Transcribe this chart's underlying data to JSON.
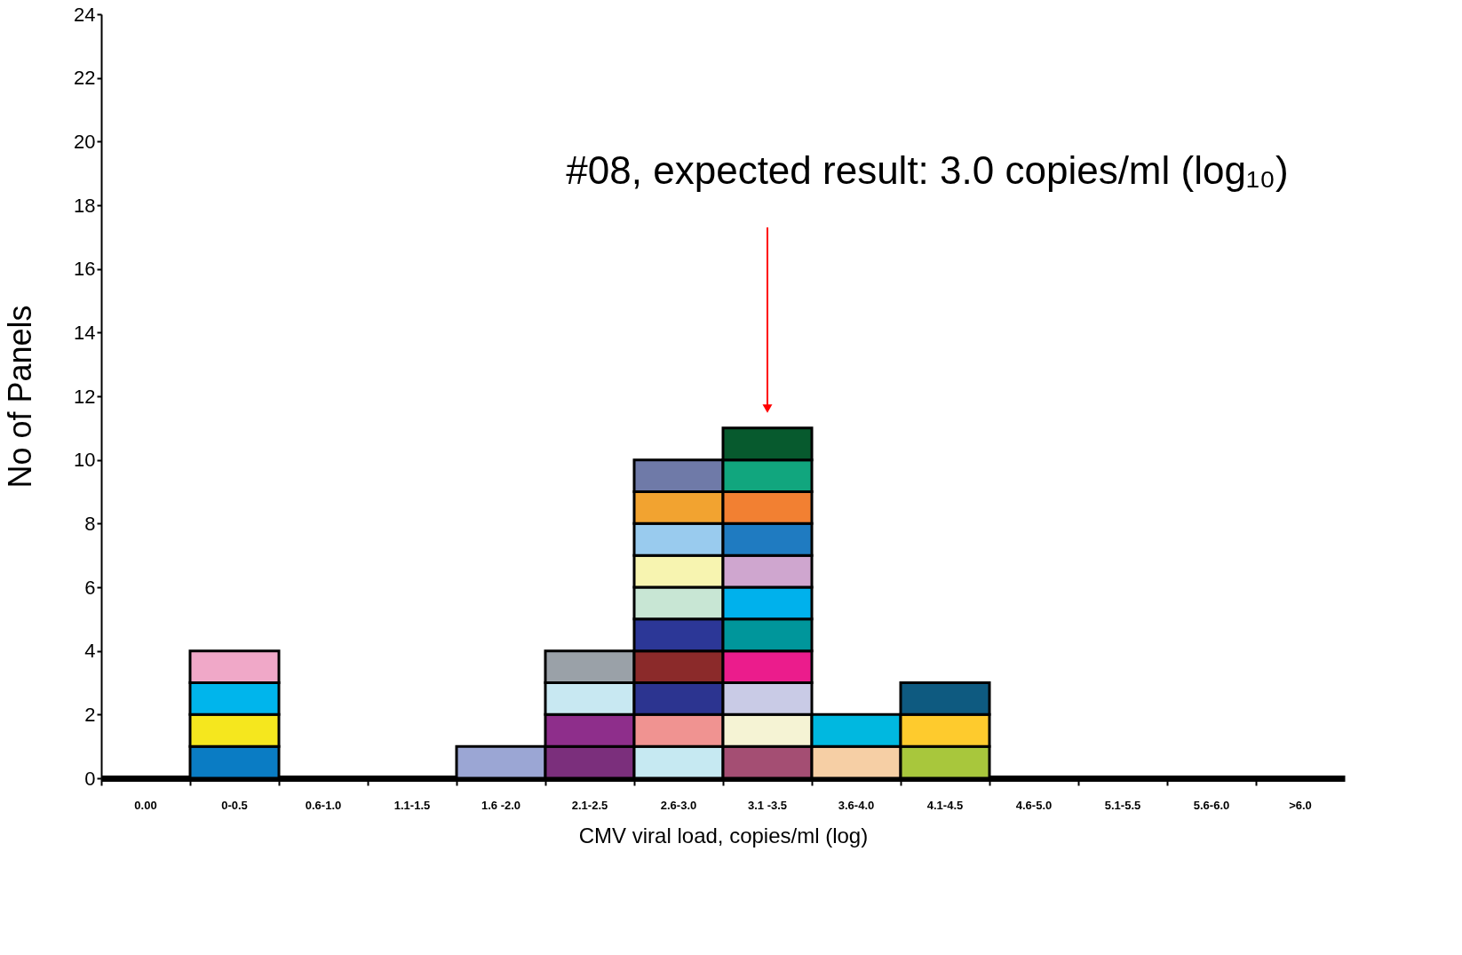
{
  "chart_data": {
    "type": "bar",
    "stacked": true,
    "xlabel": "CMV viral load, copies/ml (log)",
    "ylabel": "No of Panels",
    "categories": [
      "0.00",
      "0-0.5",
      "0.6-1.0",
      "1.1-1.5",
      "1.6 -2.0",
      "2.1-2.5",
      "2.6-3.0",
      "3.1 -3.5",
      "3.6-4.0",
      "4.1-4.5",
      "4.6-5.0",
      "5.1-5.5",
      "5.6-6.0",
      ">6.0"
    ],
    "series": [
      {
        "values": [
          null,
          1,
          null,
          null,
          1,
          1,
          1,
          1,
          1,
          1,
          null,
          null,
          null,
          null
        ],
        "colors": [
          null,
          "#0a7cc4",
          null,
          null,
          "#9ba6d4",
          "#7b2f7c",
          "#c6e9f2",
          "#a44e73",
          "#f6cfa5",
          "#a8c73c",
          null,
          null,
          null,
          null
        ]
      },
      {
        "values": [
          null,
          1,
          null,
          null,
          null,
          1,
          1,
          1,
          1,
          1,
          null,
          null,
          null,
          null
        ],
        "colors": [
          null,
          "#f5e71e",
          null,
          null,
          null,
          "#8e2e8b",
          "#f09391",
          "#f5f3d4",
          "#00b8e0",
          "#fecb2d",
          null,
          null,
          null,
          null
        ]
      },
      {
        "values": [
          null,
          1,
          null,
          null,
          null,
          1,
          1,
          1,
          null,
          1,
          null,
          null,
          null,
          null
        ],
        "colors": [
          null,
          "#00b5ec",
          null,
          null,
          null,
          "#c8e8f2",
          "#2c3490",
          "#c9cbe6",
          null,
          "#0e5a80",
          null,
          null,
          null,
          null
        ]
      },
      {
        "values": [
          null,
          1,
          null,
          null,
          null,
          1,
          1,
          1,
          null,
          null,
          null,
          null,
          null,
          null
        ],
        "colors": [
          null,
          "#f0a8c8",
          null,
          null,
          null,
          "#9aa1a8",
          "#8b2a2a",
          "#eb1c8c",
          null,
          null,
          null,
          null,
          null,
          null
        ]
      },
      {
        "values": [
          null,
          null,
          null,
          null,
          null,
          null,
          1,
          1,
          null,
          null,
          null,
          null,
          null,
          null
        ],
        "colors": [
          null,
          null,
          null,
          null,
          null,
          null,
          "#2c3797",
          "#00969b",
          null,
          null,
          null,
          null,
          null,
          null
        ]
      },
      {
        "values": [
          null,
          null,
          null,
          null,
          null,
          null,
          1,
          1,
          null,
          null,
          null,
          null,
          null,
          null
        ],
        "colors": [
          null,
          null,
          null,
          null,
          null,
          null,
          "#c8e6d4",
          "#00b1ec",
          null,
          null,
          null,
          null,
          null,
          null
        ]
      },
      {
        "values": [
          null,
          null,
          null,
          null,
          null,
          null,
          1,
          1,
          null,
          null,
          null,
          null,
          null,
          null
        ],
        "colors": [
          null,
          null,
          null,
          null,
          null,
          null,
          "#f7f4b0",
          "#cfa6cf",
          null,
          null,
          null,
          null,
          null,
          null
        ]
      },
      {
        "values": [
          null,
          null,
          null,
          null,
          null,
          null,
          1,
          1,
          null,
          null,
          null,
          null,
          null,
          null
        ],
        "colors": [
          null,
          null,
          null,
          null,
          null,
          null,
          "#99cbee",
          "#1f7bc1",
          null,
          null,
          null,
          null,
          null,
          null
        ]
      },
      {
        "values": [
          null,
          null,
          null,
          null,
          null,
          null,
          1,
          1,
          null,
          null,
          null,
          null,
          null,
          null
        ],
        "colors": [
          null,
          null,
          null,
          null,
          null,
          null,
          "#f2a330",
          "#f28032",
          null,
          null,
          null,
          null,
          null,
          null
        ]
      },
      {
        "values": [
          null,
          null,
          null,
          null,
          null,
          null,
          1,
          1,
          null,
          null,
          null,
          null,
          null,
          null
        ],
        "colors": [
          null,
          null,
          null,
          null,
          null,
          null,
          "#6f7aa8",
          "#11a67e",
          null,
          null,
          null,
          null,
          null,
          null
        ]
      },
      {
        "values": [
          null,
          null,
          null,
          null,
          null,
          null,
          null,
          1,
          null,
          null,
          null,
          null,
          null,
          null
        ],
        "colors": [
          null,
          null,
          null,
          null,
          null,
          null,
          null,
          "#075a2e",
          null,
          null,
          null,
          null,
          null,
          null
        ]
      }
    ],
    "ylim": [
      0,
      24
    ],
    "yticks": [
      0,
      2,
      4,
      6,
      8,
      10,
      12,
      14,
      16,
      18,
      20,
      22,
      24
    ],
    "grid": false,
    "legend": false,
    "annotations": [
      "#08, expected result: 3.0 copies/ml (log₁₀)"
    ]
  }
}
